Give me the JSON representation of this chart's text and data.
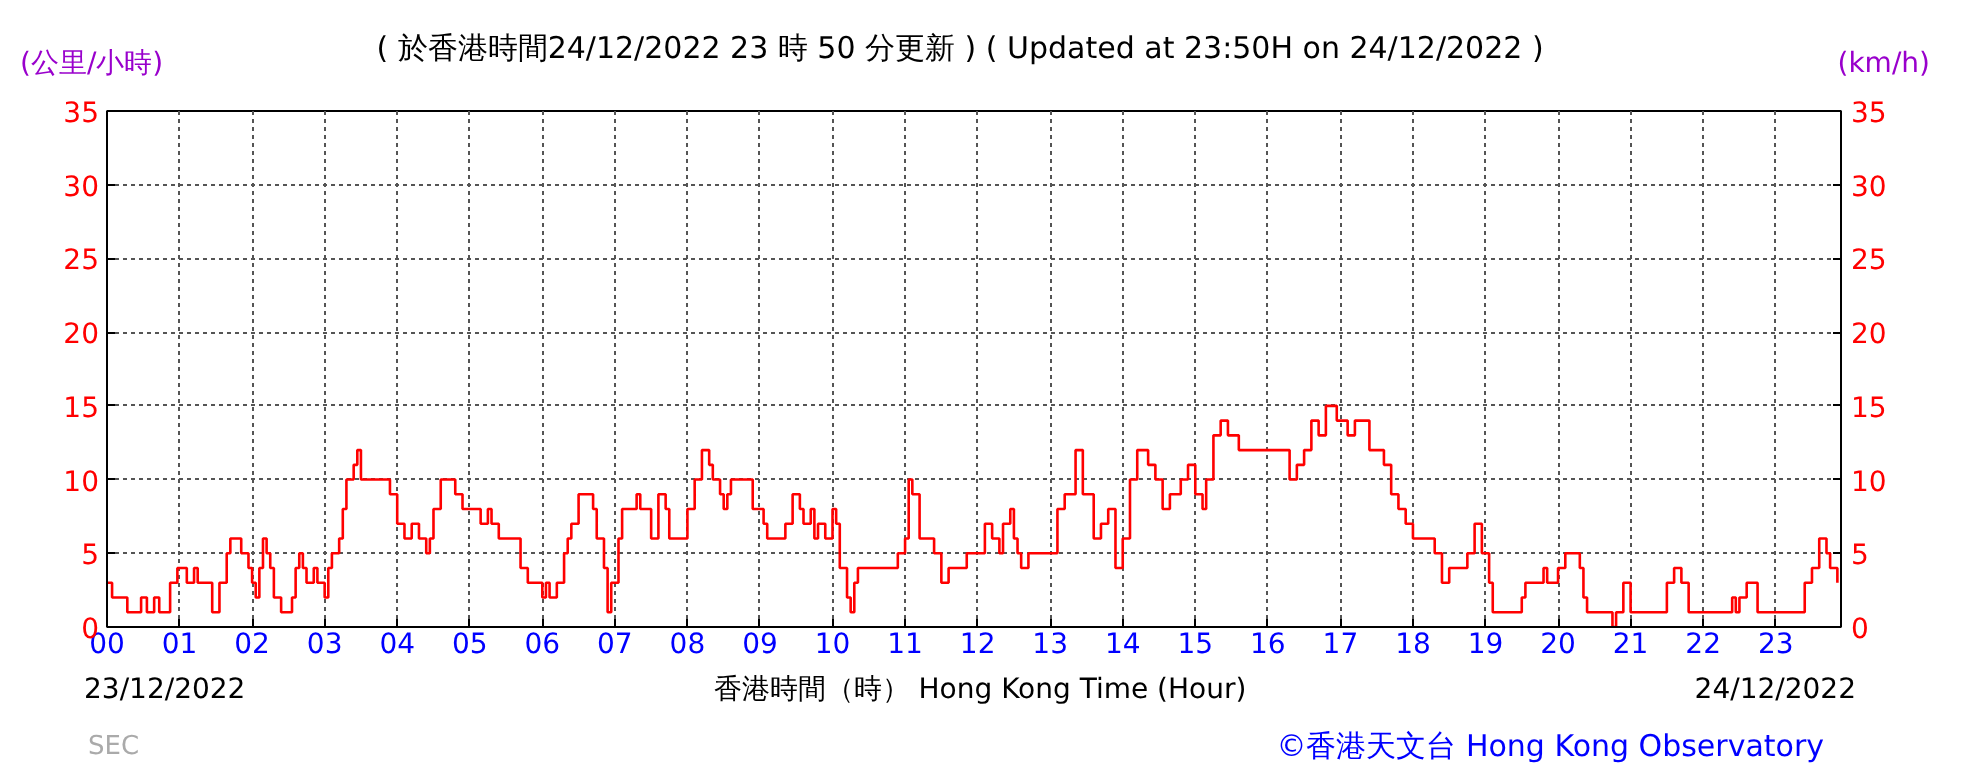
{
  "chart_data": {
    "type": "step",
    "title": "( 於香港時間24/12/2022 23 時 50 分更新 ) ( Updated at 23:50H on 24/12/2022 )",
    "xlabel": "香港時間（時） Hong Kong Time (Hour)",
    "ylabel": "(公里/小時)",
    "y2label": "(km/h)",
    "annotations": [
      "23/12/2022",
      "24/12/2022",
      "SEC",
      "©香港天文台 Hong Kong Observatory"
    ],
    "x": [
      0.0,
      0.07,
      0.28,
      0.47,
      0.55,
      0.65,
      0.72,
      0.87,
      0.97,
      1.1,
      1.2,
      1.25,
      1.45,
      1.55,
      1.65,
      1.7,
      1.85,
      1.95,
      2.0,
      2.05,
      2.1,
      2.15,
      2.2,
      2.25,
      2.3,
      2.4,
      2.55,
      2.6,
      2.65,
      2.7,
      2.75,
      2.85,
      2.9,
      3.0,
      3.05,
      3.1,
      3.2,
      3.25,
      3.3,
      3.4,
      3.45,
      3.5,
      3.9,
      4.0,
      4.1,
      4.2,
      4.3,
      4.4,
      4.45,
      4.5,
      4.6,
      4.8,
      4.9,
      5.15,
      5.25,
      5.3,
      5.4,
      5.7,
      5.8,
      6.0,
      6.05,
      6.1,
      6.2,
      6.3,
      6.35,
      6.4,
      6.5,
      6.7,
      6.75,
      6.85,
      6.9,
      6.95,
      7.05,
      7.1,
      7.3,
      7.35,
      7.5,
      7.6,
      7.7,
      7.75,
      8.0,
      8.1,
      8.2,
      8.3,
      8.35,
      8.45,
      8.5,
      8.55,
      8.6,
      8.9,
      9.0,
      9.05,
      9.1,
      9.35,
      9.45,
      9.55,
      9.6,
      9.7,
      9.75,
      9.8,
      9.9,
      10.0,
      10.05,
      10.1,
      10.2,
      10.25,
      10.3,
      10.35,
      10.9,
      11.0,
      11.05,
      11.1,
      11.2,
      11.4,
      11.5,
      11.6,
      11.85,
      12.1,
      12.2,
      12.3,
      12.35,
      12.45,
      12.5,
      12.55,
      12.6,
      12.7,
      13.1,
      13.2,
      13.35,
      13.45,
      13.6,
      13.7,
      13.8,
      13.9,
      14.0,
      14.1,
      14.2,
      14.35,
      14.45,
      14.55,
      14.65,
      14.8,
      14.9,
      15.0,
      15.1,
      15.15,
      15.25,
      15.35,
      15.45,
      15.6,
      16.3,
      16.4,
      16.5,
      16.6,
      16.7,
      16.8,
      16.95,
      17.1,
      17.2,
      17.4,
      17.6,
      17.7,
      17.8,
      17.9,
      18.0,
      18.3,
      18.4,
      18.5,
      18.75,
      18.85,
      18.95,
      19.05,
      19.1,
      19.5,
      19.55,
      19.8,
      19.85,
      20.0,
      20.1,
      20.3,
      20.35,
      20.4,
      20.75,
      20.8,
      20.9,
      21.0,
      21.5,
      21.6,
      21.7,
      21.8,
      22.4,
      22.45,
      22.5,
      22.6,
      22.75,
      23.4,
      23.5,
      23.6,
      23.7,
      23.75,
      23.85
    ],
    "series": [
      {
        "color": "#ff0000",
        "values": [
          3,
          2,
          1,
          2,
          1,
          2,
          1,
          3,
          4,
          3,
          4,
          3,
          1,
          3,
          5,
          6,
          5,
          4,
          3,
          2,
          4,
          6,
          5,
          4,
          2,
          1,
          2,
          4,
          5,
          4,
          3,
          4,
          3,
          2,
          4,
          5,
          6,
          8,
          10,
          11,
          12,
          10,
          9,
          7,
          6,
          7,
          6,
          5,
          6,
          8,
          10,
          9,
          8,
          7,
          8,
          7,
          6,
          4,
          3,
          2,
          3,
          2,
          3,
          5,
          6,
          7,
          9,
          8,
          6,
          4,
          1,
          3,
          6,
          8,
          9,
          8,
          6,
          9,
          8,
          6,
          8,
          10,
          12,
          11,
          10,
          9,
          8,
          9,
          10,
          8,
          8,
          7,
          6,
          7,
          9,
          8,
          7,
          8,
          6,
          7,
          6,
          8,
          7,
          4,
          2,
          1,
          3,
          4,
          5,
          6,
          10,
          9,
          6,
          5,
          3,
          4,
          5,
          7,
          6,
          5,
          7,
          8,
          6,
          5,
          4,
          5,
          8,
          9,
          12,
          9,
          6,
          7,
          8,
          4,
          6,
          10,
          12,
          11,
          10,
          8,
          9,
          10,
          11,
          9,
          8,
          10,
          13,
          14,
          13,
          12,
          10,
          11,
          12,
          14,
          13,
          15,
          14,
          13,
          14,
          12,
          11,
          9,
          8,
          7,
          6,
          5,
          3,
          4,
          5,
          7,
          5,
          3,
          1,
          2,
          3,
          4,
          3,
          4,
          5,
          4,
          2,
          1,
          0,
          1,
          3,
          1,
          3,
          4,
          3,
          1,
          2,
          1,
          2,
          3,
          1,
          3,
          4,
          6,
          5,
          4,
          3
        ]
      }
    ],
    "xlim": [
      0,
      23.9
    ],
    "ylim": [
      0,
      35
    ],
    "y2lim": [
      0,
      35
    ],
    "xticks": [
      {
        "value": 0,
        "label": "00"
      },
      {
        "value": 1,
        "label": "01"
      },
      {
        "value": 2,
        "label": "02"
      },
      {
        "value": 3,
        "label": "03"
      },
      {
        "value": 4,
        "label": "04"
      },
      {
        "value": 5,
        "label": "05"
      },
      {
        "value": 6,
        "label": "06"
      },
      {
        "value": 7,
        "label": "07"
      },
      {
        "value": 8,
        "label": "08"
      },
      {
        "value": 9,
        "label": "09"
      },
      10,
      11,
      12,
      13,
      14,
      15,
      16,
      17,
      18,
      19,
      20,
      21,
      22,
      23
    ],
    "yticks": [
      0,
      5,
      10,
      15,
      20,
      25,
      30,
      35
    ],
    "y2ticks": [
      0,
      5,
      10,
      15,
      20,
      25,
      30,
      35
    ],
    "grid": true
  }
}
